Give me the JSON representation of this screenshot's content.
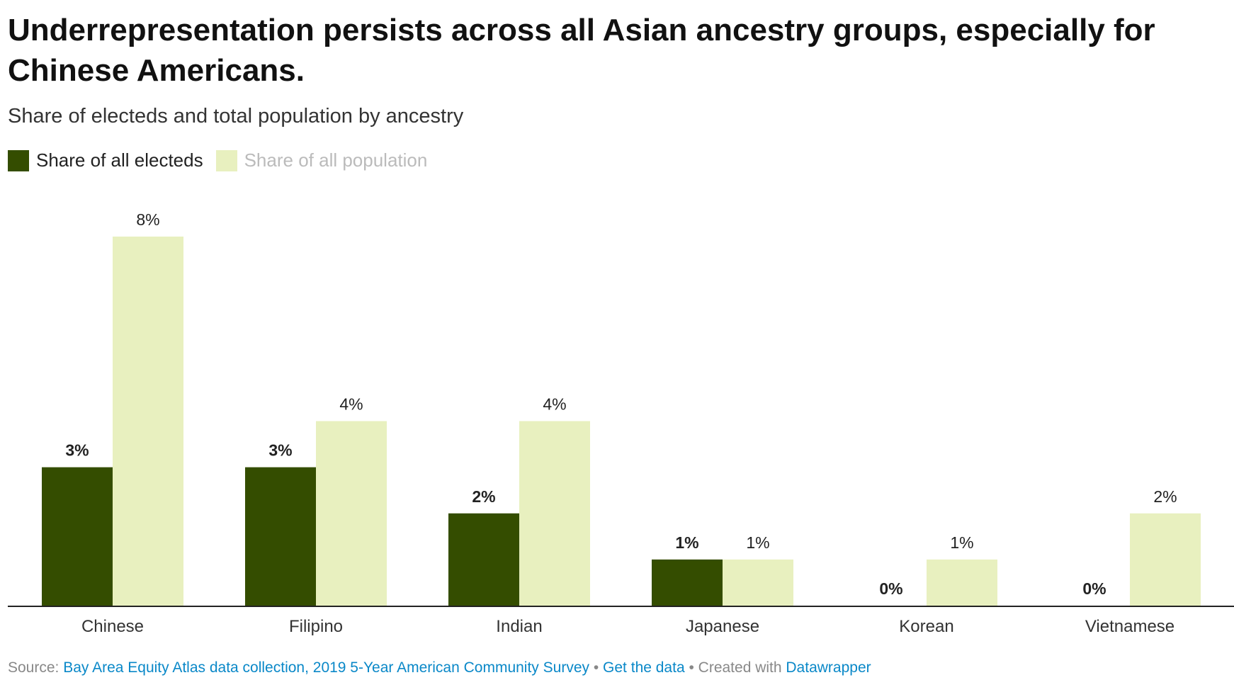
{
  "title": "Underrepresentation persists across all Asian ancestry groups, especially for Chinese Americans.",
  "subtitle": "Share of electeds and total population by ancestry",
  "colors": {
    "electeds": "#344d00",
    "population": "#e8f0bf",
    "legend_inactive_text": "#bbbbbb"
  },
  "chart_data": {
    "type": "bar",
    "title": "Underrepresentation persists across all Asian ancestry groups, especially for Chinese Americans.",
    "subtitle": "Share of electeds and total population by ancestry",
    "xlabel": "",
    "ylabel": "",
    "ylim": [
      0,
      8
    ],
    "grid": false,
    "legend": "top-left",
    "categories": [
      "Chinese",
      "Filipino",
      "Indian",
      "Japanese",
      "Korean",
      "Vietnamese"
    ],
    "series": [
      {
        "name": "Share of all electeds",
        "values": [
          3,
          3,
          2,
          1,
          0,
          0
        ],
        "labels": [
          "3%",
          "3%",
          "2%",
          "1%",
          "0%",
          "0%"
        ]
      },
      {
        "name": "Share of all population",
        "values": [
          8,
          4,
          4,
          1,
          1,
          2
        ],
        "labels": [
          "8%",
          "4%",
          "4%",
          "1%",
          "1%",
          "2%"
        ]
      }
    ]
  },
  "footer": {
    "source_label": "Source:",
    "source_link": "Bay Area Equity Atlas data collection, 2019 5-Year American Community Survey",
    "sep1": " • ",
    "get_data": "Get the data",
    "sep2": " • Created with ",
    "datawrapper": "Datawrapper"
  }
}
